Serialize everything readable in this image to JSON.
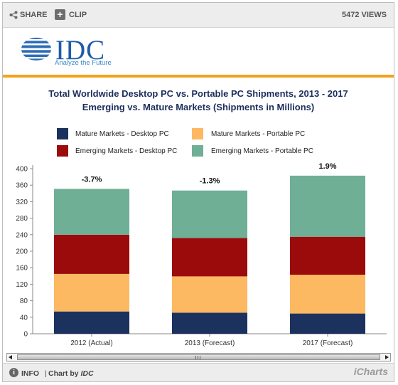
{
  "topbar": {
    "share_label": "SHARE",
    "clip_label": "CLIP",
    "views_label": "5472 VIEWS"
  },
  "header": {
    "logo_text": "IDC",
    "logo_tagline": "Analyze the Future"
  },
  "colors": {
    "mature_desktop": "#1b325f",
    "mature_portable": "#fdb862",
    "emerging_desktop": "#9c0b0b",
    "emerging_portable": "#6faf96",
    "accent_band": "#f5a31a",
    "logo_blue": "#1f5ba8"
  },
  "chart_data": {
    "type": "bar",
    "stacked": true,
    "title": "Total Worldwide Desktop PC vs. Portable PC Shipments, 2013 - 2017",
    "subtitle": "Emerging vs. Mature Markets (Shipments in Millions)",
    "categories": [
      "2012 (Actual)",
      "2013 (Forecast)",
      "2017 (Forecast)"
    ],
    "series": [
      {
        "name": "Mature Markets - Desktop PC",
        "values": [
          54,
          51,
          49
        ]
      },
      {
        "name": "Mature Markets - Portable PC",
        "values": [
          91,
          88,
          94
        ]
      },
      {
        "name": "Emerging Markets - Desktop PC",
        "values": [
          95,
          93,
          92
        ]
      },
      {
        "name": "Emerging Markets - Portable PC",
        "values": [
          111,
          115,
          148
        ]
      }
    ],
    "bar_labels": [
      "-3.7%",
      "-1.3%",
      "1.9%"
    ],
    "ylim": [
      0,
      400
    ],
    "yticks": [
      "0",
      "40",
      "80",
      "120",
      "160",
      "200",
      "240",
      "280",
      "320",
      "360",
      "400"
    ],
    "xlabel": "",
    "ylabel": "",
    "grid": false,
    "legend_position": "top"
  },
  "footer": {
    "info_label": "INFO",
    "separator": "|",
    "chart_by_label": "Chart by",
    "chart_by_brand": "IDC",
    "brand": "iCharts"
  }
}
